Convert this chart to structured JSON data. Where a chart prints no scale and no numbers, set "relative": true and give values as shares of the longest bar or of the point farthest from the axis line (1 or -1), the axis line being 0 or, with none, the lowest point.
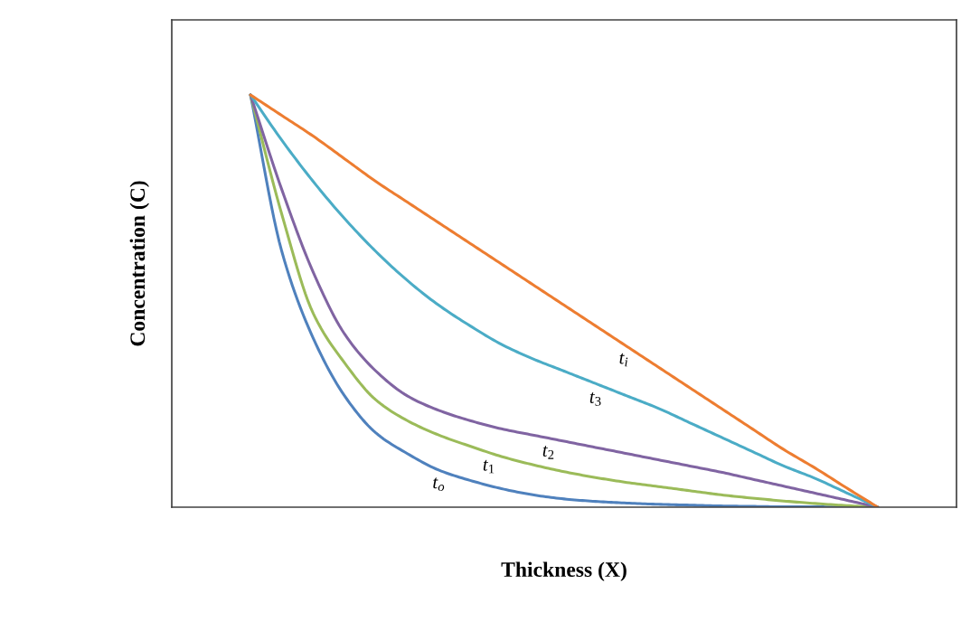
{
  "chart_data": {
    "type": "line",
    "relative": true,
    "xlabel": "Thickness (X)",
    "ylabel": "Concentration (C)",
    "legend": false,
    "categories": [
      null,
      null,
      null,
      null,
      null,
      null,
      null,
      null,
      null,
      null,
      null,
      null,
      null,
      null,
      null,
      null,
      null,
      null,
      null,
      null,
      null
    ],
    "series": [
      {
        "name": "t$_{o}$",
        "color": "#4f81bd",
        "values": [
          1,
          0.62,
          0.41,
          0.27,
          0.18,
          0.13,
          0.09,
          0.065,
          0.045,
          0.03,
          0.02,
          0.014,
          0.01,
          0.007,
          0.005,
          0.003,
          0.002,
          0.001,
          0.001,
          0,
          0
        ]
      },
      {
        "name": "t$_{1}$",
        "color": "#9bbb59",
        "values": [
          1,
          0.71,
          0.47,
          0.35,
          0.26,
          0.21,
          0.175,
          0.148,
          0.123,
          0.103,
          0.086,
          0.072,
          0.06,
          0.05,
          0.04,
          0.03,
          0.022,
          0.015,
          0.009,
          0.004,
          0
        ]
      },
      {
        "name": "t$_{2}$",
        "color": "#8064a2",
        "values": [
          1,
          0.77,
          0.57,
          0.42,
          0.33,
          0.27,
          0.235,
          0.21,
          0.19,
          0.175,
          0.16,
          0.145,
          0.13,
          0.115,
          0.1,
          0.085,
          0.068,
          0.051,
          0.034,
          0.017,
          0
        ]
      },
      {
        "name": "t$_{3}$",
        "color": "#4bacc6",
        "values": [
          1,
          0.89,
          0.79,
          0.7,
          0.62,
          0.55,
          0.49,
          0.44,
          0.395,
          0.36,
          0.33,
          0.3,
          0.27,
          0.24,
          0.205,
          0.17,
          0.135,
          0.1,
          0.07,
          0.035,
          0
        ]
      },
      {
        "name": "t$_{i}$",
        "color": "#ed7d31",
        "values": [
          1,
          0.95,
          0.9,
          0.845,
          0.79,
          0.74,
          0.69,
          0.64,
          0.59,
          0.54,
          0.49,
          0.44,
          0.39,
          0.34,
          0.29,
          0.24,
          0.19,
          0.14,
          0.095,
          0.047,
          0
        ]
      }
    ]
  }
}
